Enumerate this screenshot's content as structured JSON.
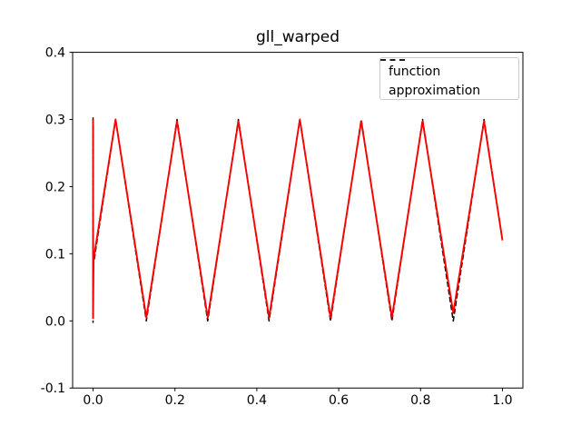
{
  "figure": {
    "title": "gll_warped"
  },
  "chart_data": {
    "type": "line",
    "title": "gll_warped",
    "xlabel": "",
    "ylabel": "",
    "xlim": [
      -0.05,
      1.05
    ],
    "ylim": [
      -0.1,
      0.4
    ],
    "grid": false,
    "background": "#ffffff",
    "spine_color": "#000000",
    "x_ticks": {
      "values": [
        0.0,
        0.2,
        0.4,
        0.6,
        0.8,
        1.0
      ],
      "labels": [
        "0.0",
        "0.2",
        "0.4",
        "0.6",
        "0.8",
        "1.0"
      ]
    },
    "y_ticks": {
      "values": [
        -0.1,
        0.0,
        0.1,
        0.2,
        0.3,
        0.4
      ],
      "labels": [
        "-0.1",
        "0.0",
        "0.1",
        "0.2",
        "0.3",
        "0.4"
      ]
    },
    "legend": {
      "position": "upper right",
      "entries": [
        {
          "label": "function",
          "color": "#000000",
          "linestyle": "dashed"
        },
        {
          "label": "approximation",
          "color": "#000000",
          "linestyle": "dashed"
        }
      ]
    },
    "series": [
      {
        "name": "function",
        "color": "#000000",
        "linestyle": "dashed",
        "linewidth": 1.5,
        "segments": [
          [
            [
              0.0,
              0.303
            ],
            [
              0.0,
              -0.003
            ]
          ],
          [
            [
              0.0,
              0.08
            ],
            [
              0.055,
              0.3
            ],
            [
              0.13,
              0.0
            ],
            [
              0.205,
              0.3
            ],
            [
              0.28,
              0.0
            ],
            [
              0.355,
              0.3
            ],
            [
              0.43,
              0.0
            ],
            [
              0.505,
              0.3
            ],
            [
              0.58,
              0.0
            ],
            [
              0.655,
              0.3
            ],
            [
              0.73,
              0.0
            ],
            [
              0.805,
              0.3
            ],
            [
              0.88,
              0.0
            ],
            [
              0.955,
              0.3
            ],
            [
              1.0,
              0.12
            ]
          ]
        ]
      },
      {
        "name": "approximation",
        "color": "#ff0000",
        "linestyle": "solid",
        "linewidth": 1.9,
        "segments": [
          [
            [
              0.0,
              0.3
            ],
            [
              0.0,
              0.004
            ],
            [
              0.0012,
              0.092
            ],
            [
              0.055,
              0.3
            ],
            [
              0.13,
              0.005
            ],
            [
              0.205,
              0.2975
            ],
            [
              0.28,
              0.005
            ],
            [
              0.355,
              0.2975
            ],
            [
              0.43,
              0.005
            ],
            [
              0.505,
              0.3
            ],
            [
              0.58,
              0.005
            ],
            [
              0.655,
              0.2975
            ],
            [
              0.73,
              0.005
            ],
            [
              0.805,
              0.2975
            ],
            [
              0.88,
              0.012
            ],
            [
              0.955,
              0.2975
            ],
            [
              1.0,
              0.12
            ]
          ]
        ]
      }
    ]
  }
}
